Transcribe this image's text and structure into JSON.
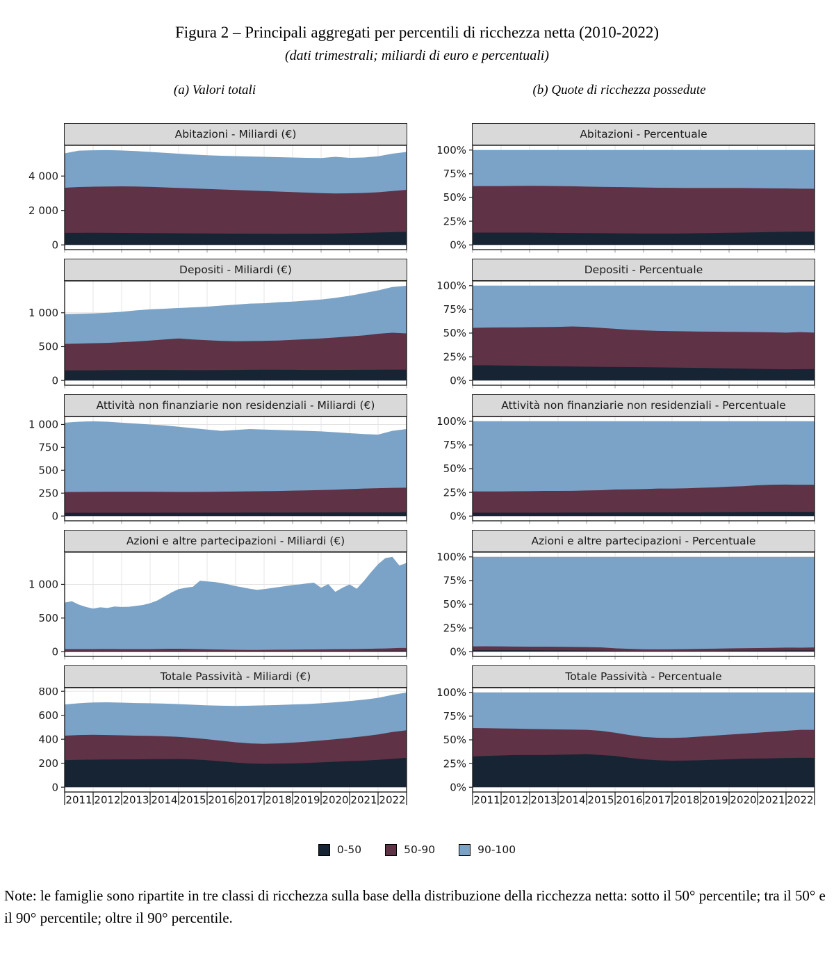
{
  "figure": {
    "title": "Figura 2 – Principali aggregati per percentili di ricchezza netta (2010-2022)",
    "subtitle": "(dati trimestrali; miliardi di euro e percentuali)",
    "panel_a_label": "(a) Valori totali",
    "panel_b_label": "(b) Quote di ricchezza possedute",
    "note": "Note: le famiglie sono ripartite in tre classi di ricchezza sulla base della distribuzione della ricchezza netta: sotto il 50° percentile; tra il 50° e il 90° percentile; oltre il 90° percentile."
  },
  "colors": {
    "p0_50": "#172433",
    "p50_90": "#5f3245",
    "p90_100": "#7ba3c7",
    "strip_bg": "#d9d9d9",
    "grid": "#e4e4e4",
    "panel_border": "#222222",
    "tick_black": "#222222",
    "tick_gray": "#999999"
  },
  "legend": {
    "items": [
      {
        "label": "0-50",
        "color_key": "p0_50"
      },
      {
        "label": "50-90",
        "color_key": "p50_90"
      },
      {
        "label": "90-100",
        "color_key": "p90_100"
      }
    ]
  },
  "x_axis": {
    "years": [
      "2011",
      "2012",
      "2013",
      "2014",
      "2015",
      "2016",
      "2017",
      "2018",
      "2019",
      "2020",
      "2021",
      "2022"
    ],
    "frequency": "trimestrale",
    "range": "2010-2022"
  },
  "chart_data": [
    {
      "type": "area",
      "title": "Abitazioni - Miliardi (€)",
      "unit": "miliardi di euro",
      "ylim": [
        -276,
        5786
      ],
      "yticks": [
        {
          "v": 0,
          "label": "0"
        },
        {
          "v": 2000,
          "label": "2 000"
        },
        {
          "v": 4000,
          "label": "4 000"
        }
      ],
      "stack_tops_cumulative": {
        "p0_50": [
          700,
          700,
          705,
          700,
          695,
          690,
          685,
          680,
          675,
          670,
          665,
          660,
          655,
          650,
          648,
          646,
          648,
          650,
          655,
          660,
          680,
          700,
          720,
          740,
          760
        ],
        "p50_90": [
          3320,
          3360,
          3380,
          3390,
          3400,
          3390,
          3370,
          3340,
          3310,
          3280,
          3250,
          3220,
          3190,
          3160,
          3130,
          3100,
          3070,
          3040,
          3010,
          2990,
          3000,
          3020,
          3060,
          3130,
          3200
        ],
        "p90_100": [
          5320,
          5480,
          5500,
          5510,
          5490,
          5450,
          5400,
          5350,
          5300,
          5250,
          5210,
          5180,
          5160,
          5140,
          5120,
          5100,
          5080,
          5060,
          5050,
          5120,
          5060,
          5080,
          5150,
          5300,
          5400
        ]
      }
    },
    {
      "type": "area",
      "title": "Abitazioni - Percentuale",
      "unit": "percentuale",
      "ylim": [
        -5,
        105
      ],
      "yticks": [
        {
          "v": 0,
          "label": "0%"
        },
        {
          "v": 25,
          "label": "25%"
        },
        {
          "v": 50,
          "label": "50%"
        },
        {
          "v": 75,
          "label": "75%"
        },
        {
          "v": 100,
          "label": "100%"
        }
      ],
      "stack_tops_cumulative": {
        "p0_50": [
          13,
          13,
          13,
          13,
          13,
          12.8,
          12.6,
          12.5,
          12.4,
          12.3,
          12.2,
          12.1,
          12,
          12,
          12,
          12.1,
          12.3,
          12.5,
          12.8,
          13,
          13.2,
          13.5,
          13.8,
          14,
          14.2
        ],
        "p50_90": [
          62,
          62,
          62,
          62.2,
          62.3,
          62.2,
          62,
          61.8,
          61.5,
          61.2,
          61,
          60.8,
          60.5,
          60.3,
          60.2,
          60,
          60,
          60,
          60,
          60,
          59.8,
          59.6,
          59.5,
          59.3,
          59.2
        ],
        "p90_100": [
          100,
          100,
          100,
          100,
          100,
          100,
          100,
          100,
          100,
          100,
          100,
          100,
          100,
          100,
          100,
          100,
          100,
          100,
          100,
          100,
          100,
          100,
          100,
          100,
          100
        ]
      }
    },
    {
      "type": "area",
      "title": "Depositi - Miliardi (€)",
      "unit": "miliardi di euro",
      "ylim": [
        -70,
        1470
      ],
      "yticks": [
        {
          "v": 0,
          "label": "0"
        },
        {
          "v": 500,
          "label": "500"
        },
        {
          "v": 1000,
          "label": "1 000"
        }
      ],
      "stack_tops_cumulative": {
        "p0_50": [
          150,
          150,
          150,
          152,
          153,
          154,
          155,
          155,
          153,
          152,
          152,
          153,
          155,
          157,
          158,
          158,
          157,
          155,
          154,
          155,
          156,
          157,
          158,
          160,
          160
        ],
        "p50_90": [
          540,
          545,
          550,
          555,
          565,
          575,
          590,
          605,
          620,
          605,
          595,
          585,
          580,
          582,
          585,
          590,
          600,
          610,
          620,
          635,
          650,
          665,
          690,
          705,
          695
        ],
        "p90_100": [
          980,
          985,
          990,
          1000,
          1015,
          1035,
          1050,
          1060,
          1070,
          1080,
          1090,
          1105,
          1120,
          1135,
          1140,
          1155,
          1165,
          1180,
          1195,
          1220,
          1250,
          1290,
          1330,
          1380,
          1400
        ]
      }
    },
    {
      "type": "area",
      "title": "Depositi - Percentuale",
      "unit": "percentuale",
      "ylim": [
        -5,
        105
      ],
      "yticks": [
        {
          "v": 0,
          "label": "0%"
        },
        {
          "v": 25,
          "label": "25%"
        },
        {
          "v": 50,
          "label": "50%"
        },
        {
          "v": 75,
          "label": "75%"
        },
        {
          "v": 100,
          "label": "100%"
        }
      ],
      "stack_tops_cumulative": {
        "p0_50": [
          16,
          16,
          15.8,
          15.6,
          15.4,
          15.2,
          15,
          14.8,
          14.5,
          14.3,
          14.2,
          14.1,
          14,
          13.8,
          13.6,
          13.4,
          13.2,
          13,
          12.8,
          12.5,
          12.2,
          12,
          11.8,
          11.9,
          12
        ],
        "p50_90": [
          55.5,
          55.8,
          56,
          56,
          56.2,
          56.3,
          56.5,
          57,
          56.5,
          55.5,
          54.5,
          53.5,
          52.8,
          52.3,
          52,
          51.8,
          51.6,
          51.5,
          51.3,
          51.2,
          51,
          50.8,
          50.5,
          51,
          50.5
        ],
        "p90_100": [
          100,
          100,
          100,
          100,
          100,
          100,
          100,
          100,
          100,
          100,
          100,
          100,
          100,
          100,
          100,
          100,
          100,
          100,
          100,
          100,
          100,
          100,
          100,
          100,
          100
        ]
      }
    },
    {
      "type": "area",
      "title": "Attività non finanziarie non residenziali - Miliardi (€)",
      "unit": "miliardi di euro",
      "ylim": [
        -52,
        1087
      ],
      "yticks": [
        {
          "v": 0,
          "label": "0"
        },
        {
          "v": 250,
          "label": "250"
        },
        {
          "v": 500,
          "label": "500"
        },
        {
          "v": 750,
          "label": "750"
        },
        {
          "v": 1000,
          "label": "1 000"
        }
      ],
      "stack_tops_cumulative": {
        "p0_50": [
          35,
          35,
          35,
          35,
          35,
          35,
          35,
          36,
          36,
          36,
          37,
          37,
          37,
          38,
          38,
          38,
          38,
          39,
          39,
          40,
          40,
          40,
          41,
          41,
          42
        ],
        "p50_90": [
          262,
          263,
          264,
          265,
          265,
          265,
          265,
          264,
          263,
          263,
          264,
          266,
          268,
          270,
          272,
          274,
          277,
          280,
          284,
          288,
          294,
          300,
          304,
          308,
          310
        ],
        "p90_100": [
          1020,
          1030,
          1035,
          1030,
          1020,
          1010,
          1000,
          990,
          975,
          960,
          945,
          930,
          940,
          950,
          945,
          940,
          935,
          930,
          925,
          915,
          905,
          895,
          890,
          930,
          950
        ]
      }
    },
    {
      "type": "area",
      "title": "Attività non finanziarie non residenziali - Percentuale",
      "unit": "percentuale",
      "ylim": [
        -5,
        105
      ],
      "yticks": [
        {
          "v": 0,
          "label": "0%"
        },
        {
          "v": 25,
          "label": "25%"
        },
        {
          "v": 50,
          "label": "50%"
        },
        {
          "v": 75,
          "label": "75%"
        },
        {
          "v": 100,
          "label": "100%"
        }
      ],
      "stack_tops_cumulative": {
        "p0_50": [
          3.5,
          3.5,
          3.5,
          3.5,
          3.5,
          3.6,
          3.6,
          3.7,
          3.7,
          3.8,
          3.9,
          4,
          4,
          4,
          4,
          4,
          4,
          4.1,
          4.2,
          4.3,
          4.4,
          4.5,
          4.5,
          4.4,
          4.4
        ],
        "p50_90": [
          26,
          26,
          26,
          26.2,
          26.3,
          26.5,
          26.5,
          26.6,
          27,
          27.3,
          28,
          28.2,
          28.5,
          29,
          29,
          29.3,
          29.8,
          30.3,
          31,
          31.5,
          32.5,
          33,
          33.2,
          33,
          33
        ],
        "p90_100": [
          100,
          100,
          100,
          100,
          100,
          100,
          100,
          100,
          100,
          100,
          100,
          100,
          100,
          100,
          100,
          100,
          100,
          100,
          100,
          100,
          100,
          100,
          100,
          100,
          100
        ]
      }
    },
    {
      "type": "area",
      "title": "Azioni e altre partecipazioni - Miliardi (€)",
      "unit": "miliardi di euro",
      "ylim": [
        -70,
        1480
      ],
      "yticks": [
        {
          "v": 0,
          "label": "0"
        },
        {
          "v": 500,
          "label": "500"
        },
        {
          "v": 1000,
          "label": "1 000"
        }
      ],
      "stack_tops_cumulative": {
        "p0_50": [
          12,
          12,
          12,
          12,
          12,
          12,
          12,
          12,
          12,
          12,
          12,
          12,
          12,
          12,
          12,
          12,
          12,
          12,
          12,
          12,
          12,
          12,
          12,
          12,
          12,
          12,
          12,
          12,
          12,
          12,
          12,
          12,
          12,
          12,
          12,
          12,
          12,
          12,
          12,
          12,
          13,
          13,
          14,
          14,
          14,
          15,
          15,
          15,
          15
        ],
        "p50_90": [
          38,
          38,
          38,
          39,
          39,
          40,
          40,
          40,
          39,
          39,
          38,
          38,
          39,
          40,
          42,
          43,
          43,
          42,
          40,
          38,
          36,
          34,
          32,
          30,
          28,
          27,
          26,
          26,
          27,
          28,
          29,
          30,
          31,
          32,
          33,
          34,
          35,
          36,
          37,
          38,
          39,
          40,
          42,
          44,
          46,
          48,
          52,
          55,
          55
        ],
        "p90_100": [
          730,
          750,
          700,
          665,
          640,
          660,
          650,
          672,
          665,
          668,
          680,
          695,
          720,
          760,
          820,
          880,
          930,
          950,
          965,
          1055,
          1045,
          1035,
          1020,
          1000,
          975,
          955,
          935,
          920,
          930,
          945,
          960,
          975,
          990,
          1000,
          1015,
          1025,
          950,
          1005,
          890,
          950,
          1000,
          935,
          1050,
          1180,
          1300,
          1390,
          1410,
          1280,
          1320
        ]
      }
    },
    {
      "type": "area",
      "title": "Azioni e altre partecipazioni - Percentuale",
      "unit": "percentuale",
      "ylim": [
        -5,
        105
      ],
      "yticks": [
        {
          "v": 0,
          "label": "0%"
        },
        {
          "v": 25,
          "label": "25%"
        },
        {
          "v": 50,
          "label": "50%"
        },
        {
          "v": 75,
          "label": "75%"
        },
        {
          "v": 100,
          "label": "100%"
        }
      ],
      "stack_tops_cumulative": {
        "p0_50": [
          1.5,
          1.5,
          1.5,
          1.5,
          1.5,
          1.4,
          1.4,
          1.3,
          1.2,
          1.1,
          1,
          1,
          0.9,
          0.9,
          0.9,
          1,
          1,
          1,
          1.1,
          1.1,
          1.2,
          1.2,
          1.3,
          1.3,
          1.3
        ],
        "p50_90": [
          5.5,
          5.6,
          5.5,
          5.4,
          5.3,
          5.3,
          5.2,
          5,
          4.8,
          4.5,
          3.5,
          3,
          2.5,
          2.4,
          2.5,
          2.7,
          3,
          3.2,
          3.4,
          3.6,
          3.8,
          4,
          4.3,
          4.2,
          4.4
        ],
        "p90_100": [
          100,
          100,
          100,
          100,
          100,
          100,
          100,
          100,
          100,
          100,
          100,
          100,
          100,
          100,
          100,
          100,
          100,
          100,
          100,
          100,
          100,
          100,
          100,
          100,
          100
        ]
      }
    },
    {
      "type": "area",
      "title": "Totale Passività - Miliardi (€)",
      "unit": "miliardi di euro",
      "ylim": [
        -40,
        830
      ],
      "yticks": [
        {
          "v": 0,
          "label": "0"
        },
        {
          "v": 200,
          "label": "200"
        },
        {
          "v": 400,
          "label": "400"
        },
        {
          "v": 600,
          "label": "600"
        },
        {
          "v": 800,
          "label": "800"
        }
      ],
      "stack_tops_cumulative": {
        "p0_50": [
          225,
          228,
          230,
          231,
          232,
          232,
          233,
          234,
          235,
          232,
          225,
          215,
          205,
          198,
          195,
          196,
          198,
          202,
          207,
          212,
          218,
          222,
          228,
          236,
          245
        ],
        "p50_90": [
          430,
          435,
          437,
          435,
          433,
          430,
          428,
          425,
          420,
          412,
          400,
          388,
          375,
          365,
          362,
          365,
          372,
          380,
          390,
          400,
          412,
          425,
          440,
          460,
          475
        ],
        "p90_100": [
          690,
          700,
          707,
          708,
          705,
          702,
          700,
          697,
          693,
          688,
          683,
          680,
          678,
          680,
          683,
          686,
          690,
          694,
          700,
          708,
          718,
          730,
          745,
          770,
          790
        ]
      }
    },
    {
      "type": "area",
      "title": "Totale Passività - Percentuale",
      "unit": "percentuale",
      "ylim": [
        -5,
        105
      ],
      "yticks": [
        {
          "v": 0,
          "label": "0%"
        },
        {
          "v": 25,
          "label": "25%"
        },
        {
          "v": 50,
          "label": "50%"
        },
        {
          "v": 75,
          "label": "75%"
        },
        {
          "v": 100,
          "label": "100%"
        }
      ],
      "stack_tops_cumulative": {
        "p0_50": [
          32.5,
          33,
          33.5,
          34,
          34,
          34,
          34.2,
          34.5,
          35,
          34,
          33,
          31,
          29.5,
          28.5,
          28,
          28.2,
          28.5,
          29,
          29.5,
          30,
          30.3,
          30.5,
          30.8,
          31,
          31
        ],
        "p50_90": [
          62.5,
          62.3,
          62,
          61.8,
          61.5,
          61.3,
          61,
          60.8,
          60.5,
          59.5,
          57.5,
          55,
          53,
          52.2,
          52,
          52.5,
          53.5,
          54.5,
          55.5,
          56.5,
          57.5,
          58.5,
          59.5,
          60.5,
          60.5
        ],
        "p90_100": [
          100,
          100,
          100,
          100,
          100,
          100,
          100,
          100,
          100,
          100,
          100,
          100,
          100,
          100,
          100,
          100,
          100,
          100,
          100,
          100,
          100,
          100,
          100,
          100,
          100
        ]
      }
    }
  ]
}
